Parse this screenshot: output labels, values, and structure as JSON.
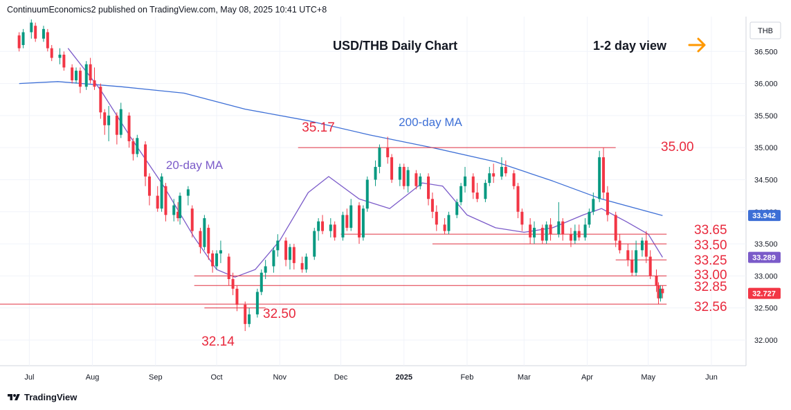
{
  "header": {
    "published_by": "ContinuumEconomics2 published on TradingView.com, May 08, 2025 10:41 UTC+8"
  },
  "footer": {
    "brand": "TradingView"
  },
  "colors": {
    "candle_up": "#089981",
    "candle_down": "#f23645",
    "ma20": "#7b5bc9",
    "ma200": "#3d6fd6",
    "level_line": "#e03040",
    "level_text": "#e8283c",
    "arrow": "#ff9800"
  },
  "chart_data": {
    "type": "candlestick",
    "title": "USD/THB Daily Chart",
    "subtitle": "1-2 day view",
    "symbol": "THB",
    "y_range": [
      31.6,
      37.0
    ],
    "y_ticks": [
      "36.500",
      "36.000",
      "35.500",
      "35.000",
      "34.500",
      "34.000",
      "33.500",
      "33.000",
      "32.500",
      "32.000"
    ],
    "x_ticks": [
      "Jul",
      "Aug",
      "Sep",
      "Oct",
      "Nov",
      "Dec",
      "2025",
      "Feb",
      "Mar",
      "Apr",
      "May",
      "Jun"
    ],
    "price_tags": [
      {
        "value": "33.942",
        "color": "#3d6fd6"
      },
      {
        "value": "33.289",
        "color": "#7b5bc9"
      },
      {
        "value": "32.727",
        "color": "#f23645"
      }
    ],
    "levels": [
      {
        "label": "35.00",
        "value": 35.0
      },
      {
        "label": "33.65",
        "value": 33.65
      },
      {
        "label": "33.50",
        "value": 33.5
      },
      {
        "label": "33.25",
        "value": 33.25
      },
      {
        "label": "33.00",
        "value": 33.0
      },
      {
        "label": "32.85",
        "value": 32.85
      },
      {
        "label": "32.56",
        "value": 32.56
      },
      {
        "label": "32.50",
        "value": 32.5
      }
    ],
    "annotations": [
      {
        "text": "35.17",
        "value": 35.17
      },
      {
        "text": "32.14",
        "value": 32.14
      },
      {
        "text": "200-day MA"
      },
      {
        "text": "20-day MA"
      }
    ],
    "series": [
      {
        "name": "20-day MA",
        "points": [
          [
            "2024-07-20",
            36.55
          ],
          [
            "2024-08-05",
            35.9
          ],
          [
            "2024-08-20",
            35.15
          ],
          [
            "2024-09-05",
            34.4
          ],
          [
            "2024-09-20",
            33.6
          ],
          [
            "2024-10-01",
            33.1
          ],
          [
            "2024-10-10",
            32.98
          ],
          [
            "2024-10-20",
            33.1
          ],
          [
            "2024-11-01",
            33.55
          ],
          [
            "2024-11-15",
            34.3
          ],
          [
            "2024-11-25",
            34.55
          ],
          [
            "2024-12-10",
            34.2
          ],
          [
            "2024-12-25",
            34.05
          ],
          [
            "2025-01-10",
            34.45
          ],
          [
            "2025-01-20",
            34.4
          ],
          [
            "2025-02-01",
            33.95
          ],
          [
            "2025-02-15",
            33.75
          ],
          [
            "2025-03-01",
            33.68
          ],
          [
            "2025-03-15",
            33.75
          ],
          [
            "2025-03-30",
            33.95
          ],
          [
            "2025-04-08",
            34.05
          ],
          [
            "2025-04-20",
            33.85
          ],
          [
            "2025-05-01",
            33.65
          ],
          [
            "2025-05-08",
            33.29
          ]
        ]
      },
      {
        "name": "200-day MA",
        "points": [
          [
            "2024-06-26",
            36.0
          ],
          [
            "2024-07-15",
            36.03
          ],
          [
            "2024-08-15",
            35.95
          ],
          [
            "2024-09-15",
            35.85
          ],
          [
            "2024-10-15",
            35.6
          ],
          [
            "2024-11-15",
            35.42
          ],
          [
            "2024-12-15",
            35.2
          ],
          [
            "2025-01-15",
            35.0
          ],
          [
            "2025-02-15",
            34.78
          ],
          [
            "2025-03-15",
            34.48
          ],
          [
            "2025-04-08",
            34.2
          ],
          [
            "2025-05-08",
            33.94
          ]
        ]
      }
    ],
    "candles": [
      [
        "2024-06-26",
        36.75,
        36.55,
        36.8,
        36.5
      ],
      [
        "2024-06-28",
        36.6,
        36.8,
        36.85,
        36.55
      ],
      [
        "2024-07-02",
        36.8,
        36.95,
        37.0,
        36.7
      ],
      [
        "2024-07-04",
        36.9,
        36.7,
        36.95,
        36.65
      ],
      [
        "2024-07-08",
        36.7,
        36.85,
        36.9,
        36.65
      ],
      [
        "2024-07-10",
        36.8,
        36.55,
        36.85,
        36.5
      ],
      [
        "2024-07-12",
        36.55,
        36.4,
        36.6,
        36.35
      ],
      [
        "2024-07-16",
        36.4,
        36.45,
        36.55,
        36.3
      ],
      [
        "2024-07-18",
        36.45,
        36.25,
        36.5,
        36.2
      ],
      [
        "2024-07-22",
        36.25,
        36.05,
        36.3,
        36.0
      ],
      [
        "2024-07-24",
        36.05,
        36.2,
        36.25,
        36.0
      ],
      [
        "2024-07-26",
        36.2,
        35.95,
        36.25,
        35.85
      ],
      [
        "2024-07-29",
        35.95,
        36.3,
        36.35,
        35.9
      ],
      [
        "2024-07-31",
        36.3,
        36.05,
        36.4,
        36.0
      ],
      [
        "2024-08-02",
        36.05,
        35.95,
        36.25,
        35.9
      ],
      [
        "2024-08-05",
        35.95,
        35.55,
        36.0,
        35.45
      ],
      [
        "2024-08-07",
        35.55,
        35.35,
        35.6,
        35.2
      ],
      [
        "2024-08-09",
        35.35,
        35.5,
        35.65,
        35.1
      ],
      [
        "2024-08-13",
        35.5,
        35.2,
        35.55,
        35.05
      ],
      [
        "2024-08-15",
        35.2,
        35.6,
        35.7,
        35.15
      ],
      [
        "2024-08-19",
        35.5,
        35.1,
        35.55,
        35.0
      ],
      [
        "2024-08-21",
        35.1,
        34.9,
        35.15,
        34.8
      ],
      [
        "2024-08-23",
        34.9,
        35.15,
        35.2,
        34.85
      ],
      [
        "2024-08-27",
        35.05,
        34.55,
        35.1,
        34.4
      ],
      [
        "2024-08-29",
        34.55,
        34.25,
        34.6,
        34.1
      ],
      [
        "2024-09-02",
        34.25,
        34.05,
        34.4,
        34.0
      ],
      [
        "2024-09-04",
        34.05,
        34.55,
        34.6,
        34.0
      ],
      [
        "2024-09-06",
        34.4,
        33.95,
        34.45,
        33.85
      ],
      [
        "2024-09-10",
        33.95,
        34.1,
        34.2,
        33.85
      ],
      [
        "2024-09-12",
        34.0,
        33.9,
        34.15,
        33.85
      ],
      [
        "2024-09-13",
        33.9,
        34.25,
        34.3,
        33.8
      ],
      [
        "2024-09-17",
        34.25,
        34.35,
        34.4,
        34.1
      ],
      [
        "2024-09-19",
        34.05,
        33.7,
        34.1,
        33.6
      ],
      [
        "2024-09-23",
        33.7,
        33.45,
        33.75,
        33.35
      ],
      [
        "2024-09-25",
        33.45,
        33.9,
        33.95,
        33.4
      ],
      [
        "2024-09-27",
        33.75,
        33.35,
        33.8,
        33.25
      ],
      [
        "2024-09-29",
        33.35,
        33.15,
        33.4,
        33.05
      ],
      [
        "2024-10-01",
        33.15,
        33.35,
        33.4,
        33.1
      ],
      [
        "2024-10-03",
        33.35,
        33.4,
        33.55,
        33.2
      ],
      [
        "2024-10-07",
        33.3,
        32.95,
        33.35,
        32.85
      ],
      [
        "2024-10-09",
        32.95,
        32.8,
        33.05,
        32.7
      ],
      [
        "2024-10-11",
        32.8,
        32.55,
        32.85,
        32.45
      ],
      [
        "2024-10-15",
        32.55,
        32.25,
        32.6,
        32.14
      ],
      [
        "2024-10-17",
        32.25,
        32.4,
        32.5,
        32.2
      ],
      [
        "2024-10-21",
        32.4,
        32.75,
        32.8,
        32.35
      ],
      [
        "2024-10-23",
        32.75,
        33.05,
        33.1,
        32.7
      ],
      [
        "2024-10-25",
        33.05,
        33.15,
        33.25,
        32.95
      ],
      [
        "2024-10-29",
        33.15,
        33.4,
        33.45,
        33.05
      ],
      [
        "2024-10-31",
        33.4,
        33.55,
        33.65,
        33.3
      ],
      [
        "2024-11-04",
        33.55,
        33.25,
        33.6,
        33.15
      ],
      [
        "2024-11-06",
        33.25,
        33.45,
        33.5,
        33.1
      ],
      [
        "2024-11-08",
        33.45,
        33.2,
        33.5,
        33.1
      ],
      [
        "2024-11-12",
        33.2,
        33.1,
        33.3,
        33.05
      ],
      [
        "2024-11-14",
        33.1,
        33.3,
        33.35,
        33.05
      ],
      [
        "2024-11-18",
        33.3,
        33.7,
        33.75,
        33.25
      ],
      [
        "2024-11-20",
        33.7,
        33.85,
        33.9,
        33.55
      ],
      [
        "2024-11-22",
        33.85,
        33.7,
        33.95,
        33.65
      ],
      [
        "2024-11-26",
        33.7,
        33.8,
        33.9,
        33.6
      ],
      [
        "2024-11-28",
        33.8,
        33.6,
        33.85,
        33.55
      ],
      [
        "2024-12-02",
        33.6,
        33.95,
        34.0,
        33.55
      ],
      [
        "2024-12-04",
        33.95,
        33.75,
        34.05,
        33.7
      ],
      [
        "2024-12-06",
        33.75,
        34.1,
        34.2,
        33.7
      ],
      [
        "2024-12-10",
        34.1,
        33.6,
        34.15,
        33.5
      ],
      [
        "2024-12-12",
        33.6,
        34.05,
        34.1,
        33.55
      ],
      [
        "2024-12-14",
        34.05,
        34.5,
        34.55,
        34.0
      ],
      [
        "2024-12-18",
        34.5,
        34.7,
        34.8,
        34.4
      ],
      [
        "2024-12-20",
        34.7,
        35.0,
        35.05,
        34.6
      ],
      [
        "2024-12-24",
        35.0,
        34.85,
        35.17,
        34.75
      ],
      [
        "2024-12-26",
        34.85,
        34.5,
        34.9,
        34.45
      ],
      [
        "2024-12-30",
        34.5,
        34.7,
        34.75,
        34.4
      ],
      [
        "2025-01-01",
        34.7,
        34.4,
        34.75,
        34.35
      ],
      [
        "2025-01-03",
        34.4,
        34.65,
        34.7,
        34.3
      ],
      [
        "2025-01-07",
        34.6,
        34.4,
        34.65,
        34.35
      ],
      [
        "2025-01-09",
        34.4,
        34.55,
        34.6,
        34.35
      ],
      [
        "2025-01-13",
        34.55,
        34.2,
        34.6,
        34.1
      ],
      [
        "2025-01-15",
        34.2,
        34.0,
        34.3,
        33.9
      ],
      [
        "2025-01-17",
        34.0,
        33.8,
        34.1,
        33.7
      ],
      [
        "2025-01-21",
        33.8,
        33.7,
        33.9,
        33.65
      ],
      [
        "2025-01-23",
        33.7,
        33.95,
        34.0,
        33.65
      ],
      [
        "2025-01-27",
        33.95,
        34.15,
        34.2,
        33.9
      ],
      [
        "2025-01-29",
        34.15,
        34.4,
        34.45,
        34.1
      ],
      [
        "2025-01-31",
        34.4,
        34.55,
        34.7,
        34.3
      ],
      [
        "2025-02-04",
        34.55,
        34.3,
        34.6,
        34.2
      ],
      [
        "2025-02-06",
        34.3,
        34.2,
        34.45,
        34.15
      ],
      [
        "2025-02-10",
        34.2,
        34.45,
        34.5,
        34.15
      ],
      [
        "2025-02-12",
        34.45,
        34.6,
        34.7,
        34.4
      ],
      [
        "2025-02-14",
        34.6,
        34.55,
        34.75,
        34.45
      ],
      [
        "2025-02-18",
        34.55,
        34.7,
        34.85,
        34.5
      ],
      [
        "2025-02-20",
        34.7,
        34.6,
        34.8,
        34.55
      ],
      [
        "2025-02-24",
        34.6,
        34.4,
        34.65,
        34.35
      ],
      [
        "2025-02-26",
        34.4,
        34.0,
        34.45,
        33.9
      ],
      [
        "2025-02-28",
        34.0,
        33.8,
        34.05,
        33.7
      ],
      [
        "2025-03-04",
        33.8,
        33.6,
        33.9,
        33.5
      ],
      [
        "2025-03-06",
        33.6,
        33.75,
        33.85,
        33.5
      ],
      [
        "2025-03-10",
        33.75,
        33.55,
        33.8,
        33.5
      ],
      [
        "2025-03-12",
        33.55,
        33.8,
        33.85,
        33.5
      ],
      [
        "2025-03-14",
        33.8,
        33.65,
        33.9,
        33.55
      ],
      [
        "2025-03-18",
        33.65,
        33.85,
        34.15,
        33.6
      ],
      [
        "2025-03-20",
        33.85,
        33.65,
        33.9,
        33.55
      ],
      [
        "2025-03-24",
        33.65,
        33.55,
        33.75,
        33.45
      ],
      [
        "2025-03-26",
        33.55,
        33.7,
        33.8,
        33.5
      ],
      [
        "2025-03-28",
        33.7,
        33.6,
        33.8,
        33.55
      ],
      [
        "2025-03-31",
        33.6,
        33.8,
        33.9,
        33.55
      ],
      [
        "2025-04-02",
        33.8,
        34.0,
        34.05,
        33.75
      ],
      [
        "2025-04-04",
        34.0,
        34.2,
        34.3,
        33.95
      ],
      [
        "2025-04-07",
        34.2,
        34.85,
        34.95,
        34.15
      ],
      [
        "2025-04-09",
        34.85,
        34.3,
        35.0,
        34.2
      ],
      [
        "2025-04-11",
        34.3,
        33.95,
        34.4,
        33.85
      ],
      [
        "2025-04-15",
        33.95,
        33.55,
        34.0,
        33.45
      ],
      [
        "2025-04-17",
        33.55,
        33.4,
        33.65,
        33.35
      ],
      [
        "2025-04-21",
        33.4,
        33.25,
        33.5,
        33.15
      ],
      [
        "2025-04-23",
        33.25,
        33.05,
        33.4,
        33.0
      ],
      [
        "2025-04-25",
        33.05,
        33.4,
        33.55,
        33.0
      ],
      [
        "2025-04-28",
        33.4,
        33.55,
        33.6,
        33.3
      ],
      [
        "2025-04-30",
        33.55,
        33.3,
        33.7,
        33.2
      ],
      [
        "2025-05-02",
        33.3,
        33.0,
        33.4,
        32.95
      ],
      [
        "2025-05-05",
        33.0,
        32.85,
        33.1,
        32.75
      ],
      [
        "2025-05-06",
        32.85,
        32.65,
        32.9,
        32.56
      ],
      [
        "2025-05-07",
        32.65,
        32.8,
        32.85,
        32.6
      ],
      [
        "2025-05-08",
        32.8,
        32.73,
        32.85,
        32.65
      ]
    ]
  }
}
